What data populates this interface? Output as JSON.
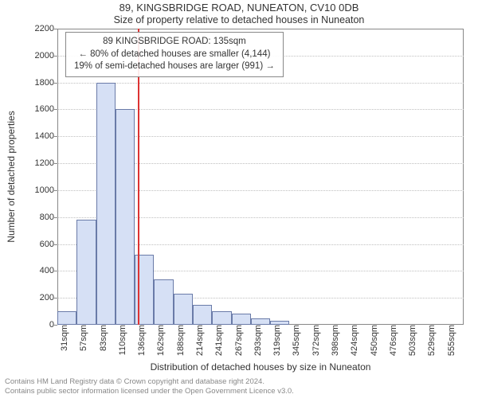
{
  "title": "89, KINGSBRIDGE ROAD, NUNEATON, CV10 0DB",
  "subtitle": "Size of property relative to detached houses in Nuneaton",
  "annotation": {
    "line1": "89 KINGSBRIDGE ROAD: 135sqm",
    "line2": "← 80% of detached houses are smaller (4,144)",
    "line3": "19% of semi-detached houses are larger (991) →"
  },
  "ylabel": "Number of detached properties",
  "xlabel": "Distribution of detached houses by size in Nuneaton",
  "footer_line1": "Contains HM Land Registry data © Crown copyright and database right 2024.",
  "footer_line2": "Contains public sector information licensed under the Open Government Licence v3.0.",
  "chart": {
    "type": "histogram",
    "ylim": [
      0,
      2200
    ],
    "ytick_step": 200,
    "yticks": [
      0,
      200,
      400,
      600,
      800,
      1000,
      1200,
      1400,
      1600,
      1800,
      2000,
      2200
    ],
    "xticks": [
      "31sqm",
      "57sqm",
      "83sqm",
      "110sqm",
      "136sqm",
      "162sqm",
      "188sqm",
      "214sqm",
      "241sqm",
      "267sqm",
      "293sqm",
      "319sqm",
      "345sqm",
      "372sqm",
      "398sqm",
      "424sqm",
      "450sqm",
      "476sqm",
      "503sqm",
      "529sqm",
      "555sqm"
    ],
    "values": [
      100,
      780,
      1800,
      1600,
      520,
      340,
      230,
      150,
      100,
      80,
      50,
      30,
      0,
      0,
      0,
      0,
      0,
      0,
      0,
      0,
      0
    ],
    "bar_fill": "#d6e0f5",
    "bar_stroke": "#6a7ba8",
    "grid_color": "#bfbfbf",
    "background": "#ffffff",
    "marker_value_sqm": 135,
    "marker_color": "#d33",
    "axis_color": "#888888",
    "title_fontsize": 13,
    "label_fontsize": 12,
    "tick_fontsize": 11
  }
}
